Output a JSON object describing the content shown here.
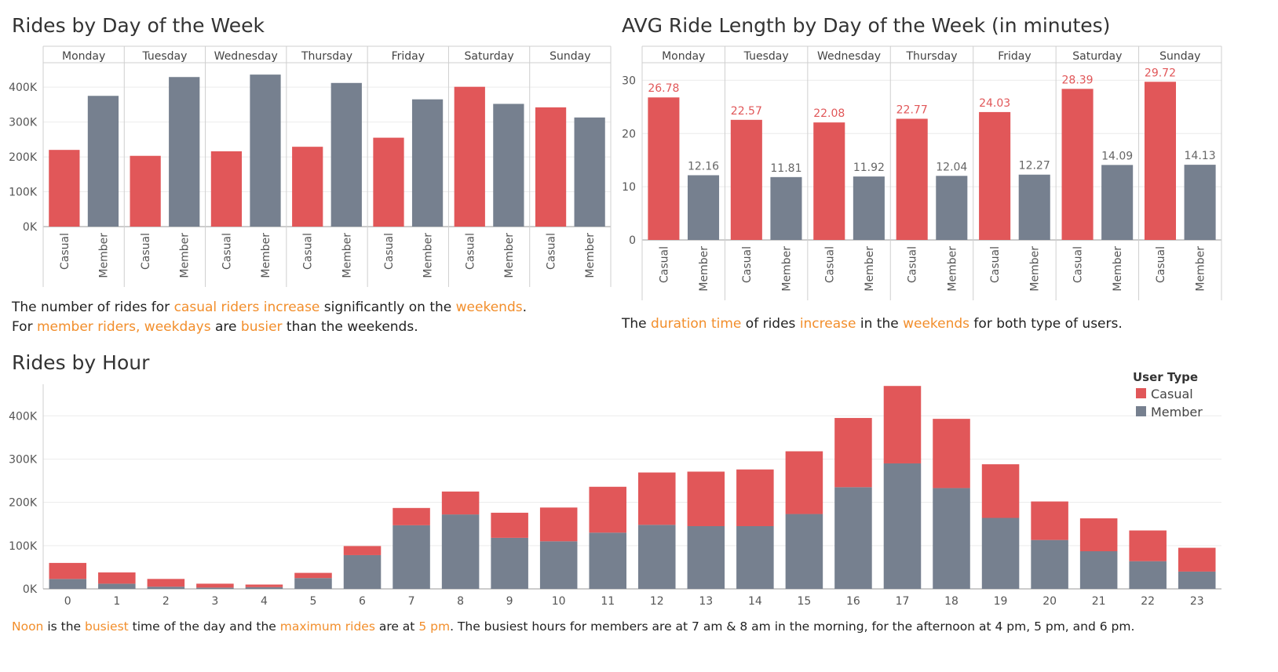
{
  "colors": {
    "casual": "#e15759",
    "member": "#76808f",
    "highlight": "#f28e2b"
  },
  "chart_data": [
    {
      "id": "rides_by_day",
      "type": "bar",
      "title": "Rides by Day of the Week",
      "categories": [
        "Monday",
        "Tuesday",
        "Wednesday",
        "Thursday",
        "Friday",
        "Saturday",
        "Sunday"
      ],
      "sub_categories": [
        "Casual",
        "Member"
      ],
      "series": [
        {
          "name": "Casual",
          "values": [
            220000,
            203000,
            216000,
            229000,
            255000,
            401000,
            342000
          ]
        },
        {
          "name": "Member",
          "values": [
            375000,
            429000,
            436000,
            412000,
            365000,
            352000,
            313000
          ]
        }
      ],
      "yticks": [
        0,
        100000,
        200000,
        300000,
        400000
      ],
      "ytick_labels": [
        "0K",
        "100K",
        "200K",
        "300K",
        "400K"
      ],
      "ylim": [
        0,
        470000
      ],
      "grid": true
    },
    {
      "id": "avg_ride_length",
      "type": "bar",
      "title": "AVG Ride Length by Day of the Week (in minutes)",
      "categories": [
        "Monday",
        "Tuesday",
        "Wednesday",
        "Thursday",
        "Friday",
        "Saturday",
        "Sunday"
      ],
      "sub_categories": [
        "Casual",
        "Member"
      ],
      "series": [
        {
          "name": "Casual",
          "values": [
            26.78,
            22.57,
            22.08,
            22.77,
            24.03,
            28.39,
            29.72
          ],
          "labels": [
            "26.78",
            "22.57",
            "22.08",
            "22.77",
            "24.03",
            "28.39",
            "29.72"
          ]
        },
        {
          "name": "Member",
          "values": [
            12.16,
            11.81,
            11.92,
            12.04,
            12.27,
            14.09,
            14.13
          ],
          "labels": [
            "12.16",
            "11.81",
            "11.92",
            "12.04",
            "12.27",
            "14.09",
            "14.13"
          ]
        }
      ],
      "yticks": [
        0,
        10,
        20,
        30
      ],
      "ytick_labels": [
        "0",
        "10",
        "20",
        "30"
      ],
      "ylim": [
        0,
        33.3
      ],
      "grid": true
    },
    {
      "id": "rides_by_hour",
      "type": "bar",
      "stacked": true,
      "title": "Rides by Hour",
      "categories": [
        "0",
        "1",
        "2",
        "3",
        "4",
        "5",
        "6",
        "7",
        "8",
        "9",
        "10",
        "11",
        "12",
        "13",
        "14",
        "15",
        "16",
        "17",
        "18",
        "19",
        "20",
        "21",
        "22",
        "23"
      ],
      "series": [
        {
          "name": "Member",
          "values": [
            23000,
            12000,
            5000,
            3000,
            4000,
            25000,
            78000,
            147000,
            172000,
            118000,
            110000,
            130000,
            148000,
            145000,
            145000,
            173000,
            235000,
            290000,
            233000,
            164000,
            113000,
            87000,
            64000,
            40000
          ]
        },
        {
          "name": "Casual",
          "values": [
            37000,
            26000,
            18000,
            9000,
            6000,
            12000,
            21000,
            40000,
            53000,
            58000,
            78000,
            106000,
            121000,
            126000,
            131000,
            145000,
            160000,
            179000,
            160000,
            124000,
            89000,
            76000,
            71000,
            55000
          ]
        }
      ],
      "yticks": [
        0,
        100000,
        200000,
        300000,
        400000
      ],
      "ytick_labels": [
        "0K",
        "100K",
        "200K",
        "300K",
        "400K"
      ],
      "ylim": [
        0,
        473000
      ],
      "grid": true,
      "legend": {
        "title": "User Type",
        "entries": [
          "Casual",
          "Member"
        ],
        "placement": "top-right"
      }
    }
  ],
  "notes": {
    "day": {
      "line1": [
        "The number of rides for ",
        "casual riders increase",
        " significantly on the ",
        "weekends",
        "."
      ],
      "line2": [
        "For ",
        "member riders, weekdays",
        " are ",
        "busier",
        " than the weekends."
      ]
    },
    "avg": {
      "line1": [
        "The ",
        "duration time",
        " of rides ",
        "increase",
        " in the ",
        "weekends",
        " for both type of users."
      ]
    },
    "hour": {
      "line1": [
        "Noon",
        " is the ",
        "busiest",
        " time of the day and the ",
        "maximum rides",
        " are at ",
        "5 pm",
        ". The busiest hours for members are at 7 am & 8 am in the morning, for the afternoon at 4 pm, 5 pm, and 6 pm."
      ]
    }
  }
}
